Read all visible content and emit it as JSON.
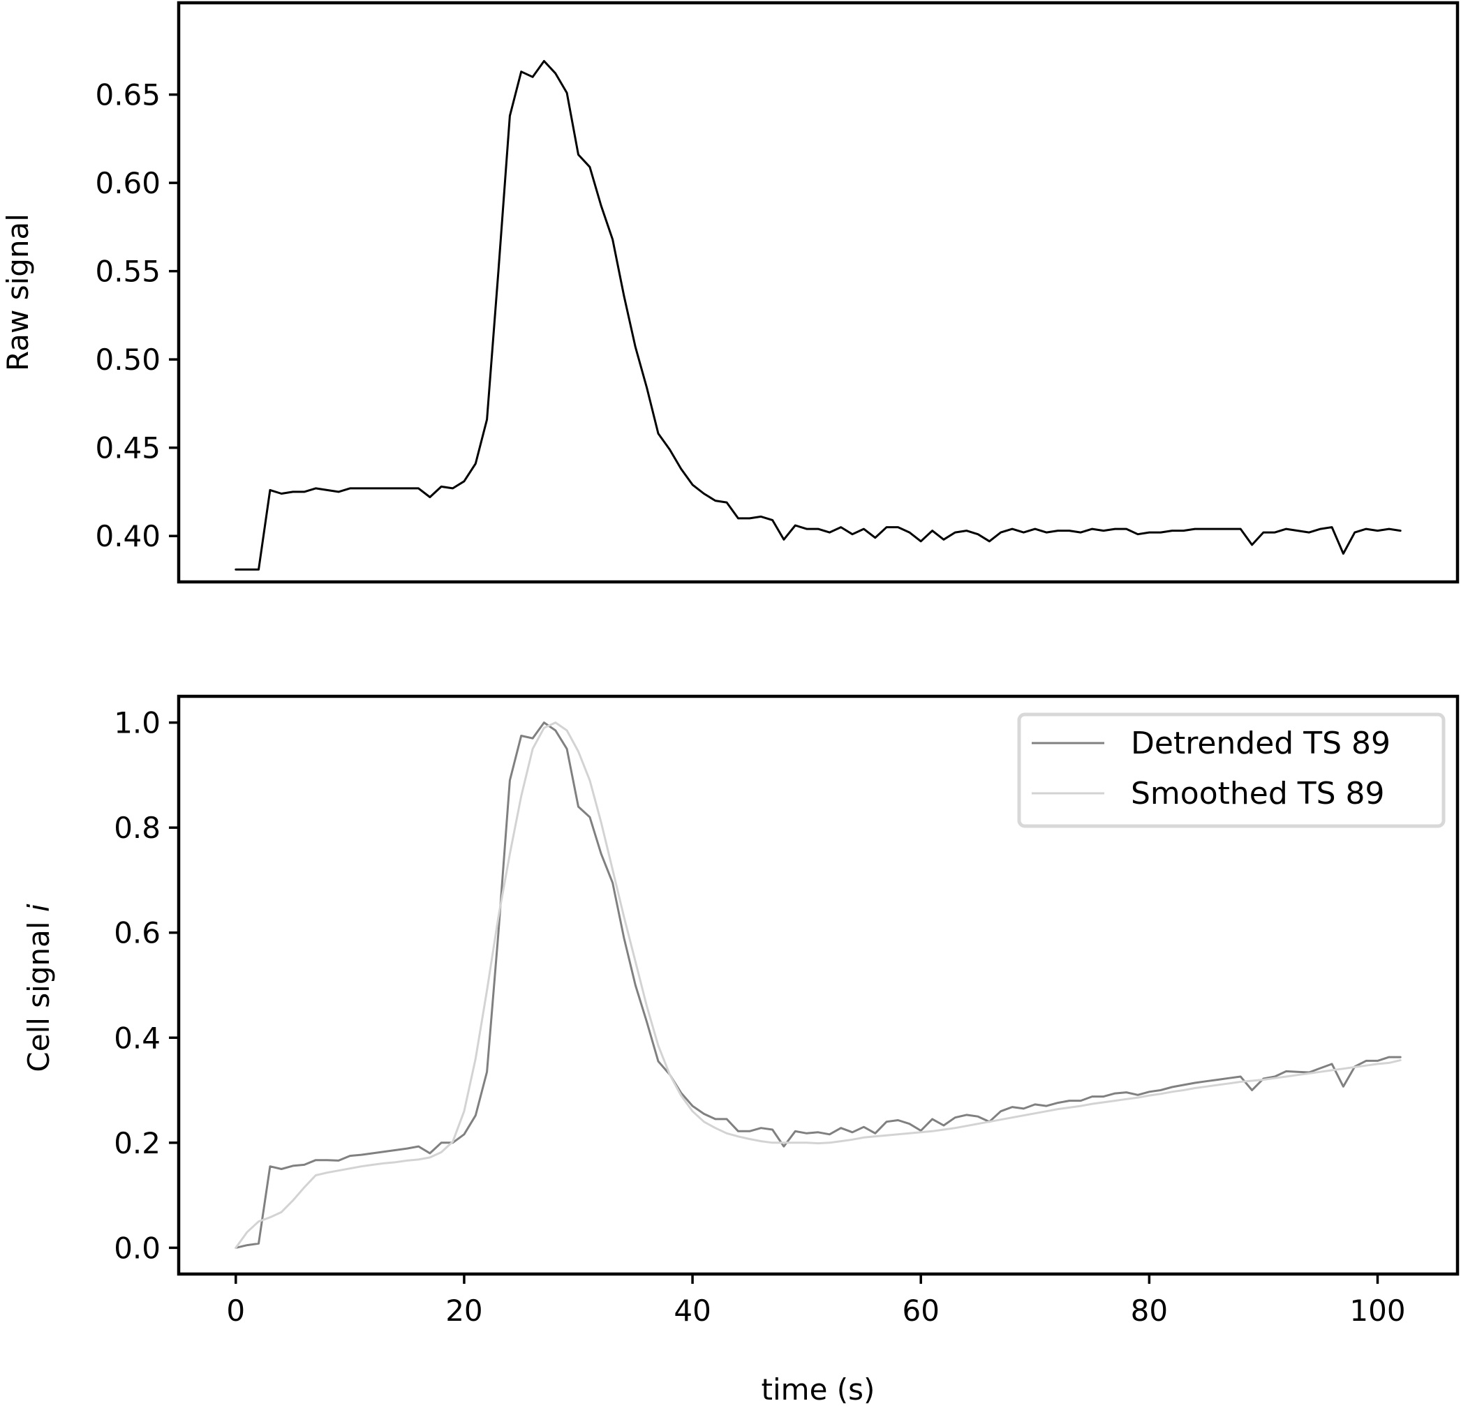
{
  "chart_data": [
    {
      "type": "line",
      "xlabel": "",
      "ylabel": "Raw signal",
      "xlim": [
        -5,
        107
      ],
      "ylim": [
        0.374,
        0.702
      ],
      "xticks": [],
      "yticks": [
        "0.40",
        "0.45",
        "0.50",
        "0.55",
        "0.60",
        "0.65"
      ],
      "grid": false,
      "series": [
        {
          "color": "#000000",
          "x": [
            0,
            1,
            2,
            3,
            4,
            5,
            6,
            7,
            8,
            9,
            10,
            11,
            12,
            13,
            14,
            15,
            16,
            17,
            18,
            19,
            20,
            21,
            22,
            23,
            24,
            25,
            26,
            27,
            28,
            29,
            30,
            31,
            32,
            33,
            34,
            35,
            36,
            37,
            38,
            39,
            40,
            41,
            42,
            43,
            44,
            45,
            46,
            47,
            48,
            49,
            50,
            51,
            52,
            53,
            54,
            55,
            56,
            57,
            58,
            59,
            60,
            61,
            62,
            63,
            64,
            65,
            66,
            67,
            68,
            69,
            70,
            71,
            72,
            73,
            74,
            75,
            76,
            77,
            78,
            79,
            80,
            81,
            82,
            83,
            84,
            85,
            86,
            87,
            88,
            89,
            90,
            91,
            92,
            93,
            94,
            95,
            96,
            97,
            98,
            99,
            100,
            101,
            102
          ],
          "y": [
            0.381,
            0.381,
            0.381,
            0.426,
            0.424,
            0.425,
            0.425,
            0.427,
            0.426,
            0.425,
            0.427,
            0.427,
            0.427,
            0.427,
            0.427,
            0.427,
            0.427,
            0.422,
            0.428,
            0.427,
            0.431,
            0.441,
            0.466,
            0.55,
            0.638,
            0.663,
            0.66,
            0.669,
            0.662,
            0.651,
            0.616,
            0.609,
            0.587,
            0.568,
            0.536,
            0.507,
            0.484,
            0.458,
            0.449,
            0.438,
            0.429,
            0.424,
            0.42,
            0.419,
            0.41,
            0.41,
            0.411,
            0.409,
            0.398,
            0.406,
            0.404,
            0.404,
            0.402,
            0.405,
            0.401,
            0.404,
            0.399,
            0.405,
            0.405,
            0.402,
            0.397,
            0.403,
            0.398,
            0.402,
            0.403,
            0.401,
            0.397,
            0.402,
            0.404,
            0.402,
            0.404,
            0.402,
            0.403,
            0.403,
            0.402,
            0.404,
            0.403,
            0.404,
            0.404,
            0.401,
            0.402,
            0.402,
            0.403,
            0.403,
            0.404,
            0.404,
            0.404,
            0.404,
            0.404,
            0.395,
            0.402,
            0.402,
            0.404,
            0.403,
            0.402,
            0.404,
            0.405,
            0.39,
            0.402,
            0.404,
            0.403,
            0.404,
            0.403
          ]
        }
      ]
    },
    {
      "type": "line",
      "xlabel": "time (s)",
      "ylabel_text": "Cell signal ",
      "ylabel_italic": "i",
      "xlim": [
        -5,
        107
      ],
      "ylim": [
        -0.05,
        1.05
      ],
      "xticks": [
        "0",
        "20",
        "40",
        "60",
        "80",
        "100"
      ],
      "yticks": [
        "0.0",
        "0.2",
        "0.4",
        "0.6",
        "0.8",
        "1.0"
      ],
      "grid": false,
      "legend_position": "top-right",
      "series": [
        {
          "name": "Detrended TS 89",
          "color": "#808080",
          "x": [
            0,
            1,
            2,
            3,
            4,
            5,
            6,
            7,
            8,
            9,
            10,
            11,
            12,
            13,
            14,
            15,
            16,
            17,
            18,
            19,
            20,
            21,
            22,
            23,
            24,
            25,
            26,
            27,
            28,
            29,
            30,
            31,
            32,
            33,
            34,
            35,
            36,
            37,
            38,
            39,
            40,
            41,
            42,
            43,
            44,
            45,
            46,
            47,
            48,
            49,
            50,
            51,
            52,
            53,
            54,
            55,
            56,
            57,
            58,
            59,
            60,
            61,
            62,
            63,
            64,
            65,
            66,
            67,
            68,
            69,
            70,
            71,
            72,
            73,
            74,
            75,
            76,
            77,
            78,
            79,
            80,
            81,
            82,
            83,
            84,
            85,
            86,
            87,
            88,
            89,
            90,
            91,
            92,
            93,
            94,
            95,
            96,
            97,
            98,
            99,
            100,
            101,
            102
          ],
          "y": [
            0.0,
            0.005,
            0.008,
            0.155,
            0.15,
            0.156,
            0.158,
            0.167,
            0.167,
            0.166,
            0.175,
            0.177,
            0.18,
            0.183,
            0.186,
            0.189,
            0.193,
            0.18,
            0.2,
            0.2,
            0.216,
            0.252,
            0.335,
            0.6,
            0.89,
            0.975,
            0.97,
            1.0,
            0.985,
            0.95,
            0.84,
            0.82,
            0.75,
            0.695,
            0.59,
            0.5,
            0.43,
            0.355,
            0.33,
            0.295,
            0.27,
            0.255,
            0.245,
            0.245,
            0.222,
            0.222,
            0.228,
            0.225,
            0.193,
            0.222,
            0.218,
            0.22,
            0.216,
            0.228,
            0.22,
            0.23,
            0.218,
            0.24,
            0.243,
            0.236,
            0.223,
            0.245,
            0.233,
            0.248,
            0.253,
            0.25,
            0.24,
            0.26,
            0.268,
            0.265,
            0.273,
            0.27,
            0.276,
            0.28,
            0.28,
            0.288,
            0.288,
            0.294,
            0.296,
            0.291,
            0.297,
            0.3,
            0.306,
            0.31,
            0.314,
            0.317,
            0.32,
            0.323,
            0.326,
            0.3,
            0.322,
            0.326,
            0.336,
            0.335,
            0.334,
            0.342,
            0.35,
            0.307,
            0.345,
            0.356,
            0.356,
            0.363,
            0.363
          ]
        },
        {
          "name": "Smoothed TS 89",
          "color": "#d3d3d3",
          "x": [
            0,
            1,
            2,
            3,
            4,
            5,
            6,
            7,
            8,
            9,
            10,
            11,
            12,
            13,
            14,
            15,
            16,
            17,
            18,
            19,
            20,
            21,
            22,
            23,
            24,
            25,
            26,
            27,
            28,
            29,
            30,
            31,
            32,
            33,
            34,
            35,
            36,
            37,
            38,
            39,
            40,
            41,
            42,
            43,
            44,
            45,
            46,
            47,
            48,
            49,
            50,
            51,
            52,
            53,
            54,
            55,
            56,
            57,
            58,
            59,
            60,
            61,
            62,
            63,
            64,
            65,
            66,
            67,
            68,
            69,
            70,
            71,
            72,
            73,
            74,
            75,
            76,
            77,
            78,
            79,
            80,
            81,
            82,
            83,
            84,
            85,
            86,
            87,
            88,
            89,
            90,
            91,
            92,
            93,
            94,
            95,
            96,
            97,
            98,
            99,
            100,
            101,
            102
          ],
          "y": [
            0.0,
            0.03,
            0.05,
            0.058,
            0.068,
            0.09,
            0.115,
            0.138,
            0.143,
            0.147,
            0.151,
            0.155,
            0.158,
            0.161,
            0.163,
            0.166,
            0.168,
            0.172,
            0.182,
            0.202,
            0.26,
            0.36,
            0.49,
            0.63,
            0.75,
            0.86,
            0.95,
            0.99,
            1.0,
            0.985,
            0.945,
            0.89,
            0.81,
            0.72,
            0.63,
            0.545,
            0.46,
            0.385,
            0.33,
            0.29,
            0.26,
            0.24,
            0.228,
            0.218,
            0.212,
            0.207,
            0.203,
            0.2,
            0.2,
            0.2,
            0.2,
            0.199,
            0.2,
            0.203,
            0.206,
            0.21,
            0.212,
            0.214,
            0.216,
            0.218,
            0.22,
            0.222,
            0.225,
            0.228,
            0.232,
            0.236,
            0.24,
            0.244,
            0.248,
            0.252,
            0.256,
            0.26,
            0.264,
            0.267,
            0.27,
            0.274,
            0.277,
            0.28,
            0.283,
            0.286,
            0.29,
            0.293,
            0.297,
            0.3,
            0.304,
            0.307,
            0.31,
            0.313,
            0.316,
            0.318,
            0.32,
            0.323,
            0.326,
            0.329,
            0.332,
            0.335,
            0.338,
            0.341,
            0.344,
            0.347,
            0.35,
            0.352,
            0.357
          ]
        }
      ]
    }
  ]
}
